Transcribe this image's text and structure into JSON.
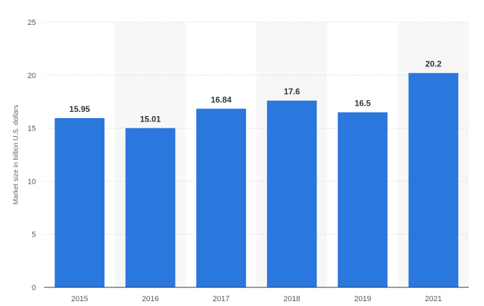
{
  "chart_data": {
    "type": "bar",
    "categories": [
      "2015",
      "2016",
      "2017",
      "2018",
      "2019",
      "2021"
    ],
    "series": [
      {
        "values": [
          15.95,
          15.01,
          16.84,
          17.6,
          16.5,
          20.2
        ]
      }
    ],
    "data_labels": [
      "15.95",
      "15.01",
      "16.84",
      "17.6",
      "16.5",
      "20.2"
    ],
    "title": "",
    "xlabel": "",
    "ylabel": "Market size in billion U.S. dollars",
    "ylim": [
      0,
      25
    ],
    "yticks": [
      0,
      5,
      10,
      15,
      20,
      25
    ],
    "ytick_labels": [
      "0",
      "5",
      "10",
      "15",
      "20",
      "25"
    ],
    "grid": true,
    "legend": "none",
    "colors": {
      "bar": "#2a77dd",
      "band": "#f7f7f8"
    }
  }
}
